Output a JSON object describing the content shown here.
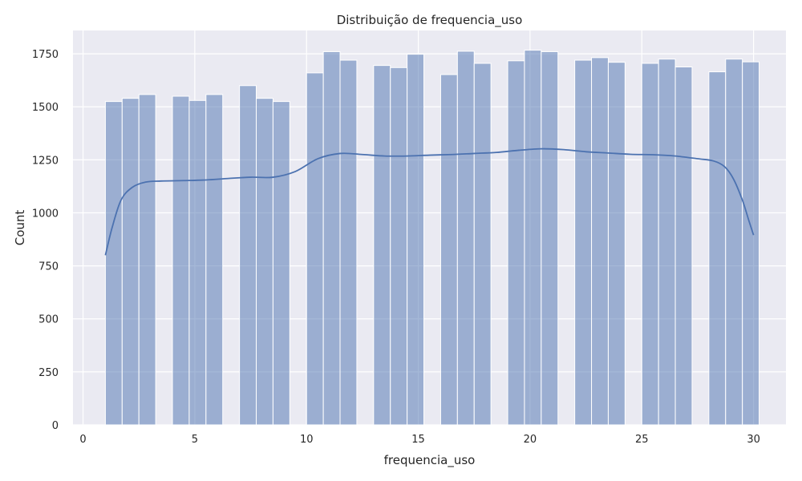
{
  "chart_data": {
    "type": "bar",
    "subtype": "histogram-with-kde",
    "title": "Distribuição de frequencia_uso",
    "xlabel": "frequencia_uso",
    "ylabel": "Count",
    "xlim": [
      -0.45,
      31.45
    ],
    "ylim": [
      0,
      1860
    ],
    "x_ticks": [
      0,
      5,
      10,
      15,
      20,
      25,
      30
    ],
    "y_ticks": [
      0,
      250,
      500,
      750,
      1000,
      1250,
      1500,
      1750
    ],
    "grid": true,
    "background": "#eaeaf2",
    "bar_color": "#4c72b0",
    "bins": [
      {
        "x0": 1.0,
        "x1": 1.75,
        "count": 1525
      },
      {
        "x0": 1.75,
        "x1": 2.5,
        "count": 1540
      },
      {
        "x0": 2.5,
        "x1": 3.25,
        "count": 1558
      },
      {
        "x0": 3.25,
        "x1": 4.0,
        "count": 0
      },
      {
        "x0": 4.0,
        "x1": 4.75,
        "count": 1550
      },
      {
        "x0": 4.75,
        "x1": 5.5,
        "count": 1530
      },
      {
        "x0": 5.5,
        "x1": 6.25,
        "count": 1558
      },
      {
        "x0": 6.25,
        "x1": 7.0,
        "count": 0
      },
      {
        "x0": 7.0,
        "x1": 7.75,
        "count": 1600
      },
      {
        "x0": 7.75,
        "x1": 8.5,
        "count": 1540
      },
      {
        "x0": 8.5,
        "x1": 9.25,
        "count": 1525
      },
      {
        "x0": 9.25,
        "x1": 10.0,
        "count": 0
      },
      {
        "x0": 10.0,
        "x1": 10.75,
        "count": 1660
      },
      {
        "x0": 10.75,
        "x1": 11.5,
        "count": 1760
      },
      {
        "x0": 11.5,
        "x1": 12.25,
        "count": 1720
      },
      {
        "x0": 12.25,
        "x1": 13.0,
        "count": 0
      },
      {
        "x0": 13.0,
        "x1": 13.75,
        "count": 1695
      },
      {
        "x0": 13.75,
        "x1": 14.5,
        "count": 1685
      },
      {
        "x0": 14.5,
        "x1": 15.25,
        "count": 1748
      },
      {
        "x0": 15.25,
        "x1": 16.0,
        "count": 0
      },
      {
        "x0": 16.0,
        "x1": 16.75,
        "count": 1652
      },
      {
        "x0": 16.75,
        "x1": 17.5,
        "count": 1762
      },
      {
        "x0": 17.5,
        "x1": 18.25,
        "count": 1705
      },
      {
        "x0": 18.25,
        "x1": 19.0,
        "count": 0
      },
      {
        "x0": 19.0,
        "x1": 19.75,
        "count": 1717
      },
      {
        "x0": 19.75,
        "x1": 20.5,
        "count": 1767
      },
      {
        "x0": 20.5,
        "x1": 21.25,
        "count": 1760
      },
      {
        "x0": 21.25,
        "x1": 22.0,
        "count": 0
      },
      {
        "x0": 22.0,
        "x1": 22.75,
        "count": 1720
      },
      {
        "x0": 22.75,
        "x1": 23.5,
        "count": 1732
      },
      {
        "x0": 23.5,
        "x1": 24.25,
        "count": 1710
      },
      {
        "x0": 24.25,
        "x1": 25.0,
        "count": 0
      },
      {
        "x0": 25.0,
        "x1": 25.75,
        "count": 1705
      },
      {
        "x0": 25.75,
        "x1": 26.5,
        "count": 1725
      },
      {
        "x0": 26.5,
        "x1": 27.25,
        "count": 1688
      },
      {
        "x0": 27.25,
        "x1": 28.0,
        "count": 0
      },
      {
        "x0": 28.0,
        "x1": 28.75,
        "count": 1665
      },
      {
        "x0": 28.75,
        "x1": 29.5,
        "count": 1725
      },
      {
        "x0": 29.5,
        "x1": 30.25,
        "count": 1712
      }
    ],
    "kde": {
      "x": [
        1.0,
        1.3,
        1.7,
        2.2,
        2.8,
        3.5,
        4.5,
        5.5,
        6.5,
        7.5,
        8.5,
        9.5,
        10.5,
        11.5,
        12.5,
        13.5,
        14.5,
        15.5,
        16.5,
        17.5,
        18.5,
        19.5,
        20.5,
        21.5,
        22.5,
        23.5,
        24.5,
        25.5,
        26.5,
        27.5,
        28.2,
        28.7,
        29.1,
        29.5,
        29.8,
        30.0
      ],
      "y": [
        800,
        930,
        1060,
        1120,
        1145,
        1150,
        1152,
        1155,
        1162,
        1168,
        1168,
        1195,
        1255,
        1280,
        1275,
        1268,
        1268,
        1272,
        1275,
        1280,
        1285,
        1295,
        1302,
        1298,
        1288,
        1282,
        1276,
        1274,
        1268,
        1255,
        1245,
        1218,
        1160,
        1060,
        960,
        895
      ]
    }
  }
}
